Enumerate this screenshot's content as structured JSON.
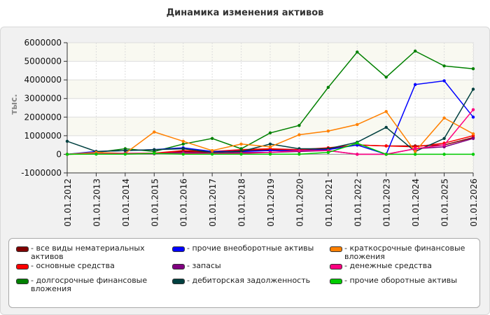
{
  "chart_data": {
    "type": "line",
    "title": "Динамика изменения активов",
    "ylabel": "тыс.",
    "xlabel": "",
    "ylim": [
      -1000000,
      6000000
    ],
    "yticks": [
      -1000000,
      0,
      1000000,
      2000000,
      3000000,
      4000000,
      5000000,
      6000000
    ],
    "grid": true,
    "legend_position": "bottom",
    "categories": [
      "01.01.2012",
      "01.01.2013",
      "01.01.2014",
      "01.01.2015",
      "01.01.2016",
      "01.01.2017",
      "01.01.2018",
      "01.01.2019",
      "01.01.2020",
      "01.01.2021",
      "01.01.2022",
      "01.01.2023",
      "01.01.2024",
      "01.01.2025",
      "01.01.2026"
    ],
    "series": [
      {
        "name": "- все виды нематериальных активов",
        "color": "#800000",
        "values": [
          0,
          20000,
          30000,
          40000,
          150000,
          100000,
          200000,
          250000,
          250000,
          300000,
          500000,
          450000,
          450000,
          500000,
          900000
        ]
      },
      {
        "name": "- основные средства",
        "color": "#ff0000",
        "values": [
          0,
          30000,
          50000,
          60000,
          200000,
          150000,
          250000,
          300000,
          250000,
          350000,
          500000,
          450000,
          400000,
          600000,
          1000000
        ]
      },
      {
        "name": "- долгосрочные финансовые вложения",
        "color": "#008000",
        "values": [
          0,
          100000,
          300000,
          150000,
          550000,
          850000,
          300000,
          1150000,
          1550000,
          3600000,
          5500000,
          4150000,
          5550000,
          4750000,
          4600000
        ]
      },
      {
        "name": "- прочие внеоборотные активы",
        "color": "#0000ff",
        "values": [
          0,
          150000,
          200000,
          250000,
          350000,
          150000,
          150000,
          200000,
          200000,
          250000,
          500000,
          0,
          3750000,
          3950000,
          2000000
        ]
      },
      {
        "name": "- запасы",
        "color": "#800080",
        "values": [
          0,
          20000,
          30000,
          30000,
          100000,
          50000,
          100000,
          100000,
          150000,
          200000,
          0,
          0,
          300000,
          400000,
          850000
        ]
      },
      {
        "name": "- дебиторская задолженность",
        "color": "#004040",
        "values": [
          700000,
          150000,
          200000,
          250000,
          300000,
          100000,
          150000,
          550000,
          300000,
          300000,
          650000,
          1450000,
          150000,
          850000,
          3500000
        ]
      },
      {
        "name": "- краткосрочные финансовые вложения",
        "color": "#ff8000",
        "values": [
          0,
          100000,
          50000,
          1200000,
          700000,
          200000,
          550000,
          400000,
          1050000,
          1250000,
          1600000,
          2300000,
          150000,
          1950000,
          1100000
        ]
      },
      {
        "name": "- денежные средства",
        "color": "#ff0080",
        "values": [
          0,
          30000,
          50000,
          50000,
          50000,
          50000,
          50000,
          100000,
          200000,
          200000,
          0,
          0,
          300000,
          500000,
          2400000
        ]
      },
      {
        "name": "- прочие оборотные активы",
        "color": "#00cc00",
        "values": [
          0,
          10000,
          10000,
          50000,
          10000,
          10000,
          10000,
          10000,
          10000,
          100000,
          600000,
          0,
          0,
          0,
          0
        ]
      }
    ]
  }
}
